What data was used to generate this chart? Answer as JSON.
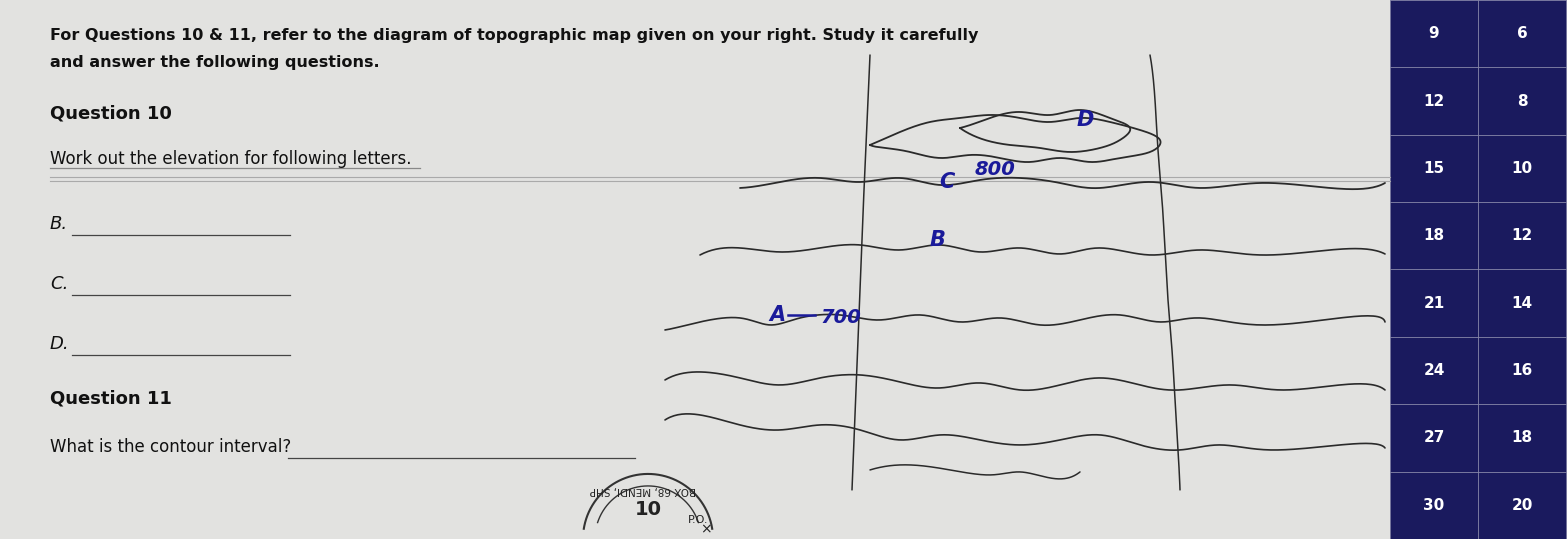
{
  "bg_color": "#c8c8c8",
  "paper_color": "#e2e2e0",
  "title_text1": "For Questions 10 & 11, refer to the diagram of topographic map given on your right. Study it carefully",
  "title_text2": "and answer the following questions.",
  "q10_header": "Question 10",
  "q10_instruction": "Work out the elevation for following letters.",
  "q11_header": "Question 11",
  "q11_text": "What is the contour interval?",
  "stamp_text1": "BOX 68, MENDI, SHP",
  "stamp_text2": "10",
  "right_col_left": [
    "9",
    "12",
    "15",
    "18",
    "21",
    "24",
    "27",
    "30"
  ],
  "right_col_right": [
    "6",
    "8",
    "10",
    "12",
    "14",
    "16",
    "18",
    "20"
  ],
  "right_col_bg": "#1a1a5e",
  "right_col_text": "#ffffff",
  "contour_color": "#2a2a2a",
  "label_color": "#1a1a9a",
  "line_color": "#888888",
  "separator_color": "#888888"
}
